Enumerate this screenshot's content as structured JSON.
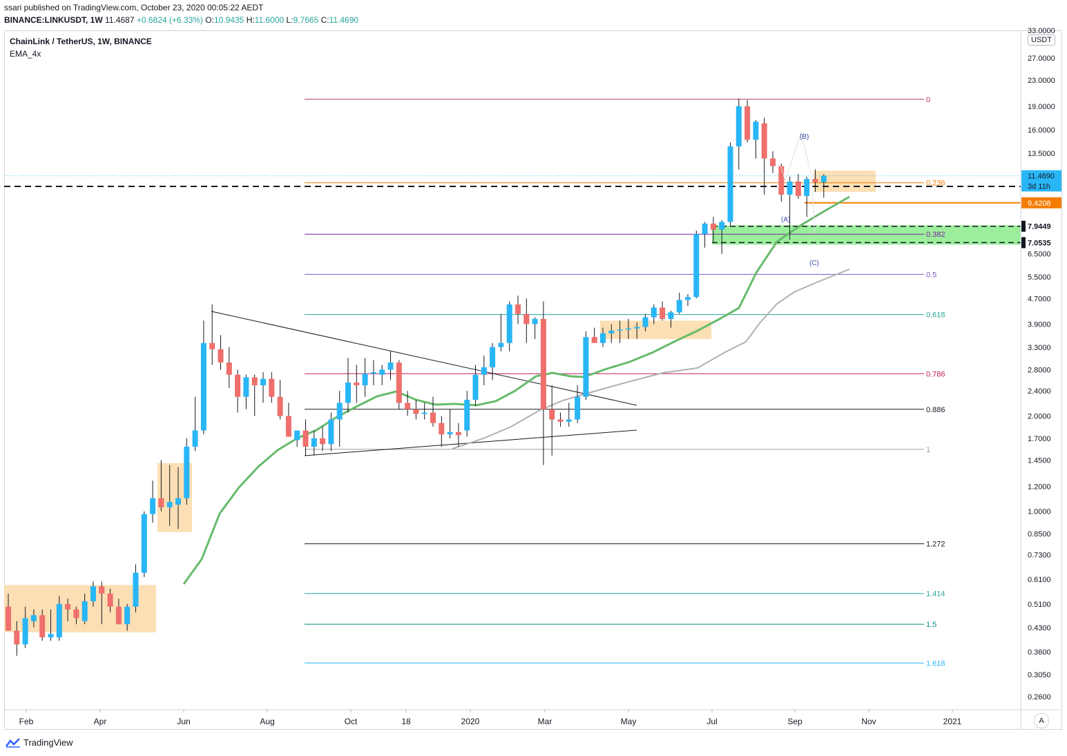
{
  "header": {
    "published": "ssari published on TradingView.com, October 23, 2020 00:05:22 AEDT",
    "symbol_line": "BINANCE:LINKUSDT, 1W",
    "price": "11.4687",
    "change": "+0.6824 (+6.33%)",
    "o_label": "O:",
    "o_value": "10.9435",
    "h_label": "H:",
    "h_value": "11.6000",
    "l_label": "L:",
    "l_value": "9.7665",
    "c_label": "C:",
    "c_value": "11.4690"
  },
  "legend": {
    "title": "ChainLink / TetherUS, 1W, BINANCE",
    "indicator": "EMA_4x"
  },
  "toolbar": {
    "unit": "USDT",
    "auto": "A"
  },
  "brand": {
    "name": "TradingView"
  },
  "colors": {
    "up": "#29b6f6",
    "down": "#ef6f6c",
    "ema": "#66bb6a",
    "ema_slow": "#b0b0b0",
    "zone_orange": "#fcd9a7",
    "zone_green": "#7be87b"
  },
  "chart_data": {
    "type": "candlestick",
    "title": "ChainLink / TetherUS, 1W, BINANCE",
    "scale": "log",
    "ylim": [
      0.23,
      33.0
    ],
    "y_ticks": [
      "33.0000",
      "27.0000",
      "23.0000",
      "19.0000",
      "16.0000",
      "13.5000",
      "11.4690",
      "9.4208",
      "7.9449",
      "7.0535",
      "6.5000",
      "5.5000",
      "4.7000",
      "3.9000",
      "3.3000",
      "2.8000",
      "2.4000",
      "2.0000",
      "1.7000",
      "1.4500",
      "1.2000",
      "1.0000",
      "0.8500",
      "0.7300",
      "0.6100",
      "0.5100",
      "0.4300",
      "0.3600",
      "0.3050",
      "0.2600"
    ],
    "x_ticks": [
      "Feb",
      "Apr",
      "Jun",
      "Aug",
      "Oct",
      "18",
      "2020",
      "Mar",
      "May",
      "Jul",
      "Sep",
      "Nov",
      "2021"
    ],
    "price_labels": [
      {
        "text": "11.4690",
        "value": 11.469,
        "kind": "last"
      },
      {
        "text": "3d 11h",
        "value": 10.65,
        "kind": "countdown"
      },
      {
        "text": "9.4208",
        "value": 9.4208,
        "kind": "level-orange"
      },
      {
        "text": "7.9449",
        "value": 7.9449,
        "kind": "level-black"
      },
      {
        "text": "7.0535",
        "value": 7.0535,
        "kind": "level-black"
      }
    ],
    "fib_levels": [
      {
        "label": "0",
        "value": 20.0,
        "color": "#b0366f"
      },
      {
        "label": "0.236",
        "value": 10.9,
        "color": "#f57c00"
      },
      {
        "label": "0.382",
        "value": 7.5,
        "color": "#7b1fa2"
      },
      {
        "label": "0.5",
        "value": 5.6,
        "color": "#7e57c2"
      },
      {
        "label": "0.618",
        "value": 4.18,
        "color": "#26a69a"
      },
      {
        "label": "0.786",
        "value": 2.72,
        "color": "#c2185b"
      },
      {
        "label": "0.886",
        "value": 2.1,
        "color": "#131722"
      },
      {
        "label": "1",
        "value": 1.57,
        "color": "#9e9e9e"
      },
      {
        "label": "1.272",
        "value": 0.79,
        "color": "#131722"
      },
      {
        "label": "1.414",
        "value": 0.55,
        "color": "#26a69a"
      },
      {
        "label": "1.5",
        "value": 0.44,
        "color": "#00897b"
      },
      {
        "label": "1.618",
        "value": 0.332,
        "color": "#29b6f6"
      }
    ],
    "wave_labels": [
      "(A)",
      "(B)",
      "(C)"
    ],
    "candles": [
      {
        "o": 0.5,
        "h": 0.55,
        "l": 0.42,
        "c": 0.42
      },
      {
        "o": 0.42,
        "h": 0.45,
        "l": 0.35,
        "c": 0.38
      },
      {
        "o": 0.38,
        "h": 0.5,
        "l": 0.37,
        "c": 0.46
      },
      {
        "o": 0.45,
        "h": 0.49,
        "l": 0.43,
        "c": 0.47
      },
      {
        "o": 0.47,
        "h": 0.49,
        "l": 0.39,
        "c": 0.4
      },
      {
        "o": 0.4,
        "h": 0.49,
        "l": 0.39,
        "c": 0.41
      },
      {
        "o": 0.4,
        "h": 0.54,
        "l": 0.39,
        "c": 0.51
      },
      {
        "o": 0.51,
        "h": 0.53,
        "l": 0.45,
        "c": 0.49
      },
      {
        "o": 0.49,
        "h": 0.5,
        "l": 0.44,
        "c": 0.46
      },
      {
        "o": 0.45,
        "h": 0.55,
        "l": 0.44,
        "c": 0.52
      },
      {
        "o": 0.52,
        "h": 0.6,
        "l": 0.5,
        "c": 0.58
      },
      {
        "o": 0.58,
        "h": 0.6,
        "l": 0.44,
        "c": 0.55
      },
      {
        "o": 0.55,
        "h": 0.57,
        "l": 0.48,
        "c": 0.5
      },
      {
        "o": 0.5,
        "h": 0.53,
        "l": 0.44,
        "c": 0.44
      },
      {
        "o": 0.44,
        "h": 0.51,
        "l": 0.42,
        "c": 0.5
      },
      {
        "o": 0.5,
        "h": 0.68,
        "l": 0.48,
        "c": 0.64
      },
      {
        "o": 0.64,
        "h": 1.0,
        "l": 0.62,
        "c": 0.98
      },
      {
        "o": 0.98,
        "h": 1.25,
        "l": 0.92,
        "c": 1.1
      },
      {
        "o": 1.1,
        "h": 1.45,
        "l": 1.0,
        "c": 1.03
      },
      {
        "o": 1.03,
        "h": 1.4,
        "l": 0.9,
        "c": 1.07
      },
      {
        "o": 1.05,
        "h": 1.38,
        "l": 0.88,
        "c": 1.1
      },
      {
        "o": 1.1,
        "h": 1.7,
        "l": 1.05,
        "c": 1.6
      },
      {
        "o": 1.6,
        "h": 2.3,
        "l": 1.55,
        "c": 1.8
      },
      {
        "o": 1.8,
        "h": 4.0,
        "l": 1.75,
        "c": 3.4
      },
      {
        "o": 3.4,
        "h": 4.5,
        "l": 2.9,
        "c": 3.25
      },
      {
        "o": 3.25,
        "h": 3.6,
        "l": 2.8,
        "c": 2.95
      },
      {
        "o": 2.95,
        "h": 3.3,
        "l": 2.45,
        "c": 2.7
      },
      {
        "o": 2.7,
        "h": 2.8,
        "l": 2.05,
        "c": 2.3
      },
      {
        "o": 2.3,
        "h": 2.7,
        "l": 2.1,
        "c": 2.65
      },
      {
        "o": 2.65,
        "h": 2.7,
        "l": 2.0,
        "c": 2.5
      },
      {
        "o": 2.5,
        "h": 2.75,
        "l": 2.2,
        "c": 2.62
      },
      {
        "o": 2.62,
        "h": 2.75,
        "l": 2.2,
        "c": 2.3
      },
      {
        "o": 2.3,
        "h": 2.6,
        "l": 1.95,
        "c": 2.0
      },
      {
        "o": 2.0,
        "h": 2.2,
        "l": 1.75,
        "c": 1.72
      },
      {
        "o": 1.68,
        "h": 1.8,
        "l": 1.6,
        "c": 1.8
      },
      {
        "o": 1.8,
        "h": 1.95,
        "l": 1.5,
        "c": 1.6
      },
      {
        "o": 1.6,
        "h": 1.8,
        "l": 1.5,
        "c": 1.7
      },
      {
        "o": 1.7,
        "h": 1.85,
        "l": 1.55,
        "c": 1.63
      },
      {
        "o": 1.63,
        "h": 2.05,
        "l": 1.55,
        "c": 1.95
      },
      {
        "o": 1.95,
        "h": 2.4,
        "l": 1.6,
        "c": 2.2
      },
      {
        "o": 2.2,
        "h": 3.05,
        "l": 2.05,
        "c": 2.55
      },
      {
        "o": 2.55,
        "h": 2.9,
        "l": 2.2,
        "c": 2.5
      },
      {
        "o": 2.5,
        "h": 3.05,
        "l": 2.3,
        "c": 2.72
      },
      {
        "o": 2.72,
        "h": 3.0,
        "l": 2.5,
        "c": 2.75
      },
      {
        "o": 2.7,
        "h": 2.9,
        "l": 2.5,
        "c": 2.8
      },
      {
        "o": 2.8,
        "h": 3.2,
        "l": 2.6,
        "c": 2.95
      },
      {
        "o": 2.95,
        "h": 3.0,
        "l": 2.1,
        "c": 2.2
      },
      {
        "o": 2.2,
        "h": 2.4,
        "l": 2.0,
        "c": 2.1
      },
      {
        "o": 2.1,
        "h": 2.25,
        "l": 1.95,
        "c": 2.03
      },
      {
        "o": 2.03,
        "h": 2.2,
        "l": 1.95,
        "c": 2.05
      },
      {
        "o": 2.05,
        "h": 2.3,
        "l": 1.85,
        "c": 1.9
      },
      {
        "o": 1.9,
        "h": 2.0,
        "l": 1.6,
        "c": 1.75
      },
      {
        "o": 1.75,
        "h": 2.1,
        "l": 1.7,
        "c": 1.78
      },
      {
        "o": 1.78,
        "h": 1.9,
        "l": 1.6,
        "c": 1.74
      },
      {
        "o": 1.8,
        "h": 2.4,
        "l": 1.72,
        "c": 2.25
      },
      {
        "o": 2.25,
        "h": 2.9,
        "l": 2.15,
        "c": 2.7
      },
      {
        "o": 2.7,
        "h": 3.1,
        "l": 2.5,
        "c": 2.85
      },
      {
        "o": 2.85,
        "h": 3.4,
        "l": 2.6,
        "c": 3.3
      },
      {
        "o": 3.3,
        "h": 4.2,
        "l": 3.2,
        "c": 3.4
      },
      {
        "o": 3.4,
        "h": 4.6,
        "l": 3.2,
        "c": 4.5
      },
      {
        "o": 4.5,
        "h": 4.8,
        "l": 3.9,
        "c": 4.2
      },
      {
        "o": 4.2,
        "h": 4.7,
        "l": 3.4,
        "c": 3.9
      },
      {
        "o": 3.9,
        "h": 4.1,
        "l": 3.5,
        "c": 4.05
      },
      {
        "o": 4.05,
        "h": 4.6,
        "l": 1.4,
        "c": 2.1
      },
      {
        "o": 2.1,
        "h": 2.5,
        "l": 1.5,
        "c": 1.95
      },
      {
        "o": 1.95,
        "h": 2.05,
        "l": 1.85,
        "c": 1.92
      },
      {
        "o": 1.92,
        "h": 2.2,
        "l": 1.85,
        "c": 1.95
      },
      {
        "o": 1.95,
        "h": 2.5,
        "l": 1.9,
        "c": 2.3
      },
      {
        "o": 2.3,
        "h": 3.7,
        "l": 2.25,
        "c": 3.55
      },
      {
        "o": 3.55,
        "h": 3.8,
        "l": 3.4,
        "c": 3.4
      },
      {
        "o": 3.4,
        "h": 3.8,
        "l": 3.3,
        "c": 3.65
      },
      {
        "o": 3.65,
        "h": 3.9,
        "l": 3.4,
        "c": 3.72
      },
      {
        "o": 3.72,
        "h": 4.0,
        "l": 3.4,
        "c": 3.75
      },
      {
        "o": 3.75,
        "h": 4.05,
        "l": 3.5,
        "c": 3.78
      },
      {
        "o": 3.78,
        "h": 3.95,
        "l": 3.5,
        "c": 3.82
      },
      {
        "o": 3.82,
        "h": 4.2,
        "l": 3.7,
        "c": 4.1
      },
      {
        "o": 4.1,
        "h": 4.5,
        "l": 3.9,
        "c": 4.4
      },
      {
        "o": 4.4,
        "h": 4.6,
        "l": 4.0,
        "c": 4.05
      },
      {
        "o": 4.05,
        "h": 4.3,
        "l": 3.8,
        "c": 4.25
      },
      {
        "o": 4.25,
        "h": 4.9,
        "l": 4.2,
        "c": 4.65
      },
      {
        "o": 4.65,
        "h": 4.85,
        "l": 4.45,
        "c": 4.75
      },
      {
        "o": 4.75,
        "h": 7.7,
        "l": 4.7,
        "c": 7.5
      },
      {
        "o": 7.5,
        "h": 8.2,
        "l": 6.8,
        "c": 8.1
      },
      {
        "o": 8.1,
        "h": 8.5,
        "l": 7.1,
        "c": 7.75
      },
      {
        "o": 7.75,
        "h": 8.3,
        "l": 6.5,
        "c": 8.2
      },
      {
        "o": 8.2,
        "h": 14.6,
        "l": 8.0,
        "c": 14.2
      },
      {
        "o": 14.2,
        "h": 20.1,
        "l": 12.0,
        "c": 19.0
      },
      {
        "o": 19.0,
        "h": 19.9,
        "l": 14.6,
        "c": 14.9
      },
      {
        "o": 14.9,
        "h": 17.2,
        "l": 13.0,
        "c": 17.0
      },
      {
        "o": 16.8,
        "h": 17.5,
        "l": 10.0,
        "c": 13.0
      },
      {
        "o": 13.0,
        "h": 13.7,
        "l": 11.7,
        "c": 12.3
      },
      {
        "o": 12.3,
        "h": 12.5,
        "l": 9.5,
        "c": 10.0
      },
      {
        "o": 10.0,
        "h": 11.4,
        "l": 7.2,
        "c": 11.0
      },
      {
        "o": 11.0,
        "h": 11.6,
        "l": 9.7,
        "c": 9.9
      },
      {
        "o": 9.9,
        "h": 11.4,
        "l": 8.5,
        "c": 11.2
      },
      {
        "o": 11.2,
        "h": 12.0,
        "l": 10.2,
        "c": 10.94
      },
      {
        "o": 10.94,
        "h": 11.6,
        "l": 9.77,
        "c": 11.47
      }
    ]
  }
}
